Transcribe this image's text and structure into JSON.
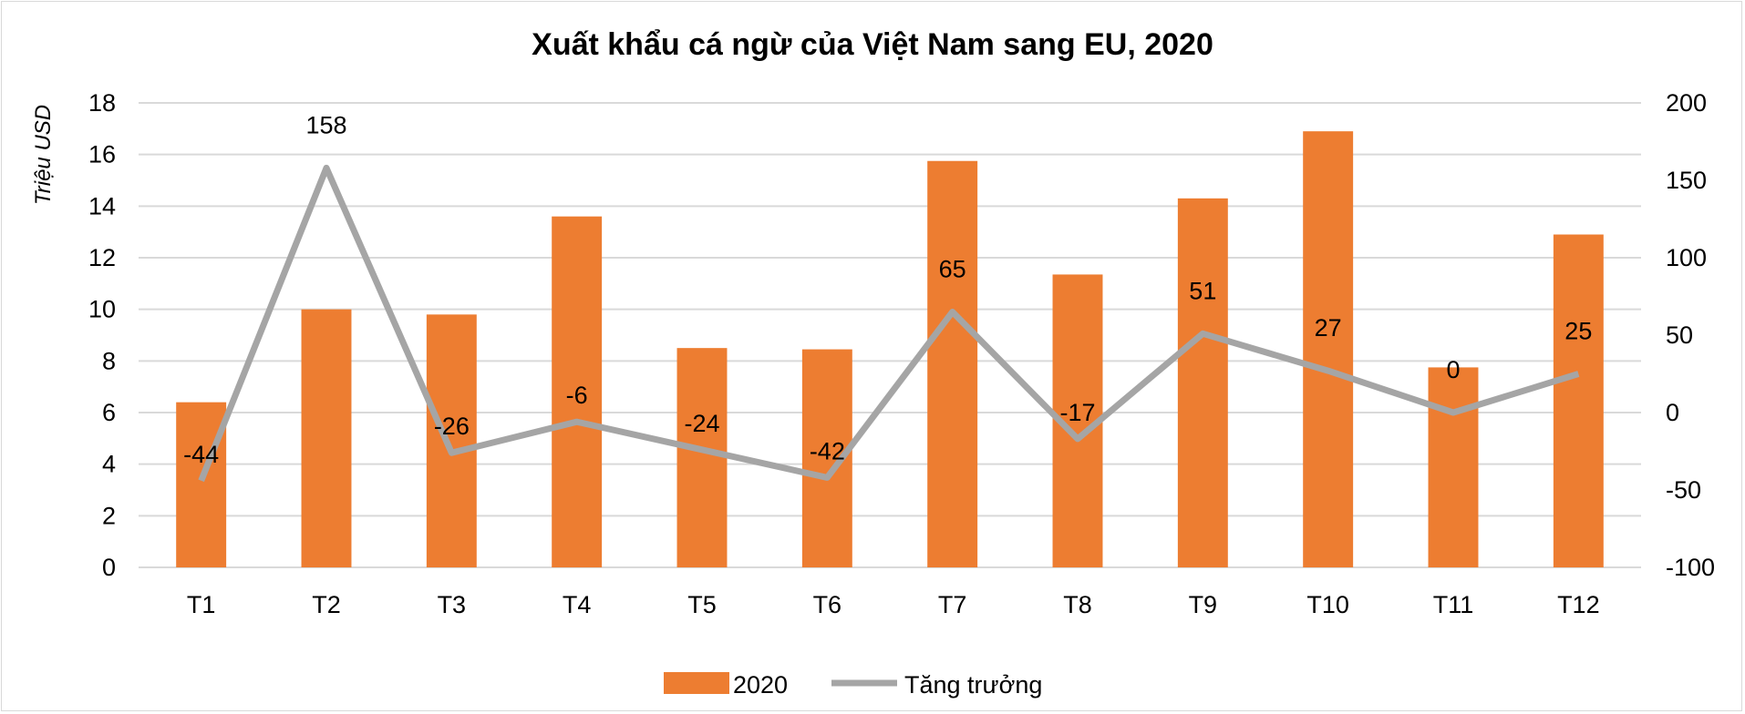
{
  "chart_data": {
    "type": "bar+line",
    "title": "Xuất khẩu cá ngừ của Việt Nam sang EU, 2020",
    "ylabel": "Triệu USD",
    "categories": [
      "T1",
      "T2",
      "T3",
      "T4",
      "T5",
      "T6",
      "T7",
      "T8",
      "T9",
      "T10",
      "T11",
      "T12"
    ],
    "series": [
      {
        "name": "2020",
        "type": "bar",
        "axis": "left",
        "color": "#ED7D31",
        "values": [
          6.4,
          10.0,
          9.8,
          13.6,
          8.5,
          8.45,
          15.75,
          11.35,
          14.3,
          16.9,
          7.75,
          12.9
        ]
      },
      {
        "name": "Tăng trưởng",
        "type": "line",
        "axis": "right",
        "color": "#A5A5A5",
        "values": [
          -44,
          158,
          -26,
          -6,
          -24,
          -42,
          65,
          -17,
          51,
          27,
          0,
          25
        ],
        "data_labels": [
          "-44",
          "158",
          "-26",
          "-6",
          "-24",
          "-42",
          "65",
          "-17",
          "51",
          "27",
          "0",
          "25"
        ]
      }
    ],
    "ylim": [
      0,
      18
    ],
    "yticks": [
      "0",
      "2",
      "4",
      "6",
      "8",
      "10",
      "12",
      "14",
      "16",
      "18"
    ],
    "y2lim": [
      -100,
      200
    ],
    "y2ticks": [
      "-100",
      "-50",
      "0",
      "50",
      "100",
      "150",
      "200"
    ],
    "grid": true,
    "legend": "bottom"
  }
}
